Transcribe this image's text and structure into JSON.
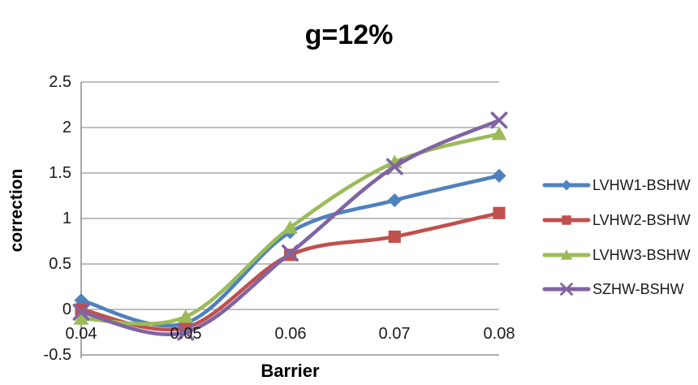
{
  "chart_data": {
    "type": "line",
    "title": "g=12%",
    "xlabel": "Barrier",
    "ylabel": "correction",
    "x": [
      0.04,
      0.05,
      0.06,
      0.07,
      0.08
    ],
    "xticks": [
      "0.04",
      "0.05",
      "0.06",
      "0.07",
      "0.08"
    ],
    "yticks": [
      "2.5",
      "2",
      "1.5",
      "1",
      "0.5",
      "0",
      "-0.5"
    ],
    "ylim": [
      -0.5,
      2.5
    ],
    "grid": true,
    "line_style": "smooth",
    "legend_position": "right",
    "series": [
      {
        "name": "LVHW1-BSHW",
        "marker": "diamond",
        "color": "#4F81BD",
        "values": [
          0.1,
          -0.15,
          0.85,
          1.2,
          1.47
        ]
      },
      {
        "name": "LVHW2-BSHW",
        "marker": "square",
        "color": "#C0504D",
        "values": [
          0.0,
          -0.2,
          0.6,
          0.8,
          1.06
        ]
      },
      {
        "name": "LVHW3-BSHW",
        "marker": "triangle",
        "color": "#9BBB59",
        "values": [
          -0.1,
          -0.08,
          0.9,
          1.62,
          1.93
        ]
      },
      {
        "name": "SZHW-BSHW",
        "marker": "x",
        "color": "#8064A2",
        "values": [
          -0.03,
          -0.25,
          0.62,
          1.57,
          2.08
        ]
      }
    ],
    "colors": {
      "background": "#FFFFFF",
      "gridline": "#969696",
      "axis": "#7F7F7F",
      "text": "#1A1A1A",
      "title": "#000000"
    }
  }
}
